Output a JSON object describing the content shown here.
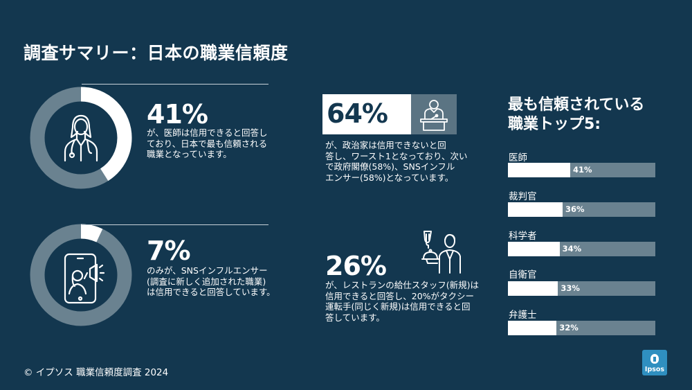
{
  "title": "調査サマリー：日本の職業信頼度",
  "stat_doctor": {
    "value": "41%",
    "text_lines": [
      "が、医師は信用できると回答し",
      "ており、日本で最も信頼される",
      "職業となっています。"
    ],
    "fraction": 0.41,
    "icon": "doctor-icon"
  },
  "stat_sns": {
    "value": "7%",
    "text_lines": [
      "のみが、SNSインフルエンサー",
      "(調査に新しく追加された職業)",
      "は信用できると回答しています。"
    ],
    "fraction": 0.07,
    "icon": "smartphone-influencer-icon"
  },
  "stat_politician": {
    "value": "64%",
    "text_lines": [
      "が、政治家は信用できないと回",
      "答し、ワースト1となっており、次い",
      "で政府閣僚(58%)、SNSインフル",
      "エンサー(58%)となっています。"
    ],
    "icon": "politician-podium-icon"
  },
  "stat_restaurant": {
    "value": "26%",
    "text_lines": [
      "が、レストランの給仕スタッフ(新規)は",
      "信用できると回答し、20%がタクシー",
      "運転手(同じく新規)は信用できると回",
      "答しています。"
    ],
    "icon": "waiter-icon"
  },
  "top5": {
    "title_lines": [
      "最も信頼されている",
      "職業トップ5:"
    ],
    "items": [
      {
        "label": "医師",
        "value": "41%",
        "fraction": 0.41
      },
      {
        "label": "裁判官",
        "value": "36%",
        "fraction": 0.36
      },
      {
        "label": "科学者",
        "value": "34%",
        "fraction": 0.34
      },
      {
        "label": "自衛官",
        "value": "33%",
        "fraction": 0.33
      },
      {
        "label": "弁護士",
        "value": "32%",
        "fraction": 0.32
      }
    ]
  },
  "footer": "© イプソス 職業信頼度調査 2024",
  "logo": "Ipsos",
  "colors": {
    "background": "#13374f",
    "accent_gray": "#6a8290",
    "white": "#ffffff"
  }
}
